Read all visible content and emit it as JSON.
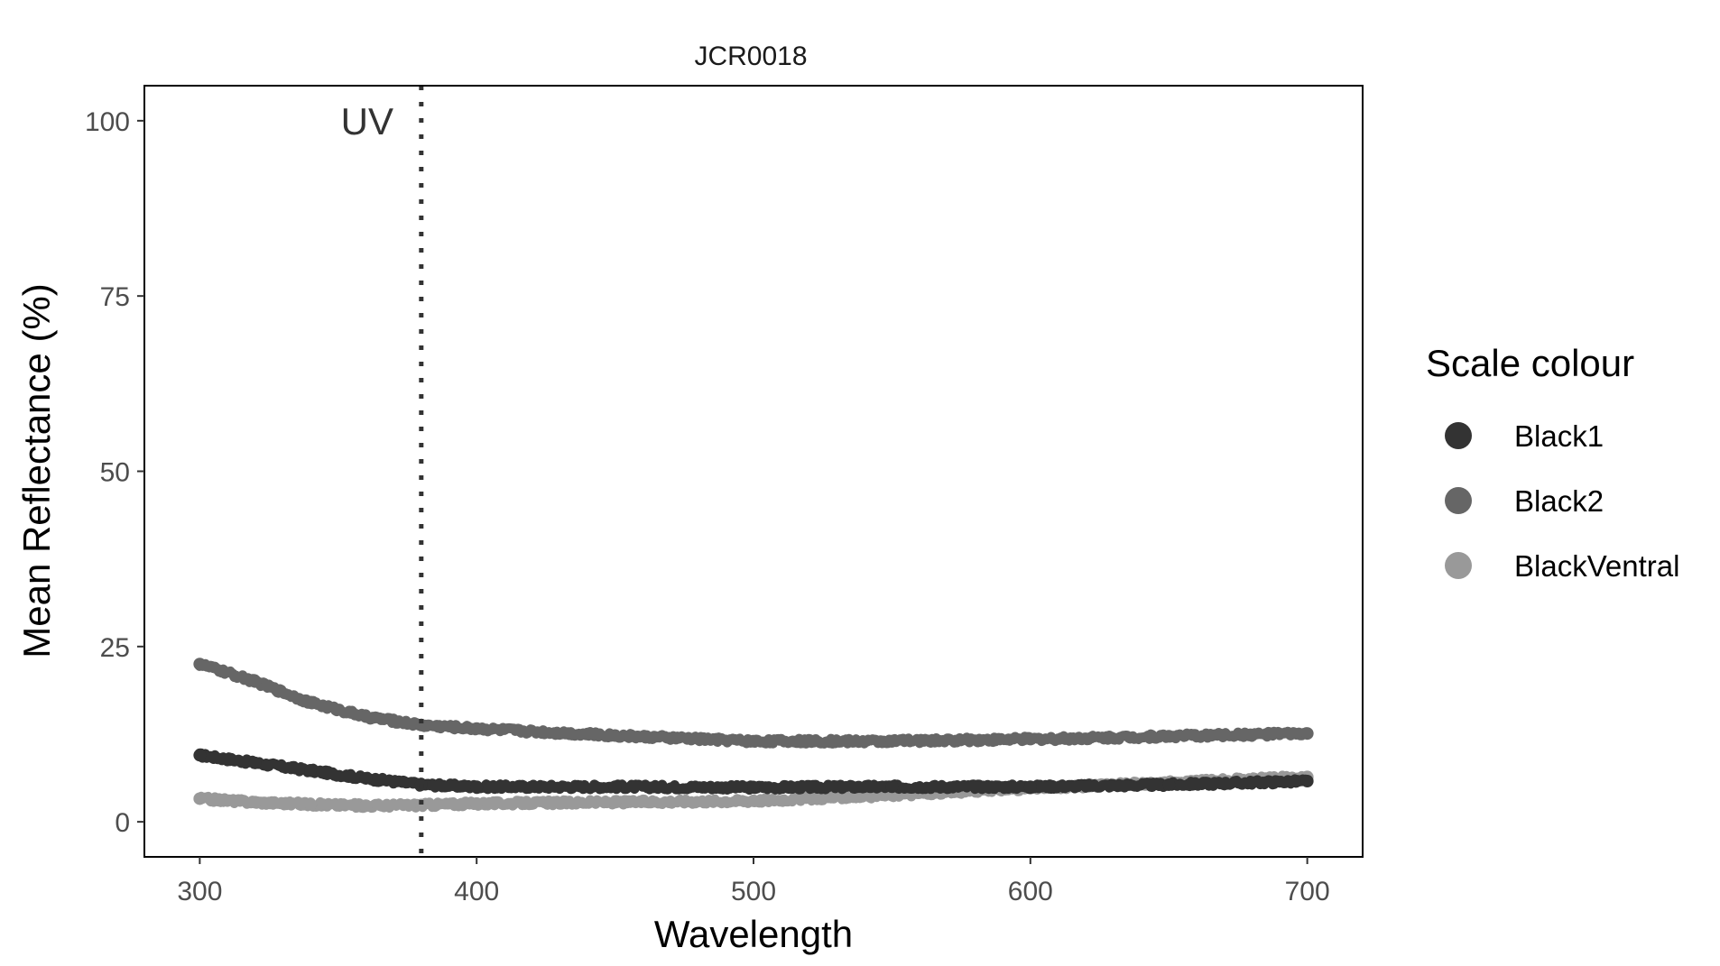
{
  "chart_data": {
    "type": "scatter",
    "title": "JCR0018",
    "xlabel": "Wavelength",
    "ylabel": "Mean Reflectance (%)",
    "xlim": [
      280,
      720
    ],
    "ylim": [
      -5,
      105
    ],
    "xticks": [
      300,
      400,
      500,
      600,
      700
    ],
    "yticks": [
      0,
      25,
      50,
      75,
      100
    ],
    "grid": false,
    "legend": {
      "title": "Scale colour",
      "placement": "right"
    },
    "vline": {
      "x": 380,
      "style": "dotted",
      "label": "UV",
      "label_y": 100
    },
    "series": [
      {
        "name": "Black1",
        "color": "#333333",
        "points": [
          [
            300,
            9.5
          ],
          [
            320,
            8.4
          ],
          [
            340,
            7.3
          ],
          [
            360,
            6.2
          ],
          [
            380,
            5.3
          ],
          [
            400,
            5.0
          ],
          [
            450,
            5.0
          ],
          [
            500,
            4.9
          ],
          [
            550,
            5.0
          ],
          [
            600,
            5.0
          ],
          [
            650,
            5.3
          ],
          [
            700,
            5.8
          ]
        ]
      },
      {
        "name": "Black2",
        "color": "#666666",
        "points": [
          [
            300,
            22.5
          ],
          [
            320,
            20.0
          ],
          [
            340,
            17.0
          ],
          [
            360,
            15.0
          ],
          [
            380,
            13.8
          ],
          [
            400,
            13.3
          ],
          [
            450,
            12.3
          ],
          [
            500,
            11.5
          ],
          [
            550,
            11.5
          ],
          [
            600,
            11.8
          ],
          [
            650,
            12.2
          ],
          [
            700,
            12.6
          ]
        ]
      },
      {
        "name": "BlackVentral",
        "color": "#999999",
        "points": [
          [
            300,
            3.3
          ],
          [
            320,
            2.8
          ],
          [
            340,
            2.5
          ],
          [
            360,
            2.3
          ],
          [
            380,
            2.4
          ],
          [
            400,
            2.6
          ],
          [
            450,
            2.8
          ],
          [
            500,
            3.0
          ],
          [
            550,
            3.8
          ],
          [
            600,
            4.8
          ],
          [
            650,
            5.6
          ],
          [
            700,
            6.4
          ]
        ]
      }
    ]
  }
}
